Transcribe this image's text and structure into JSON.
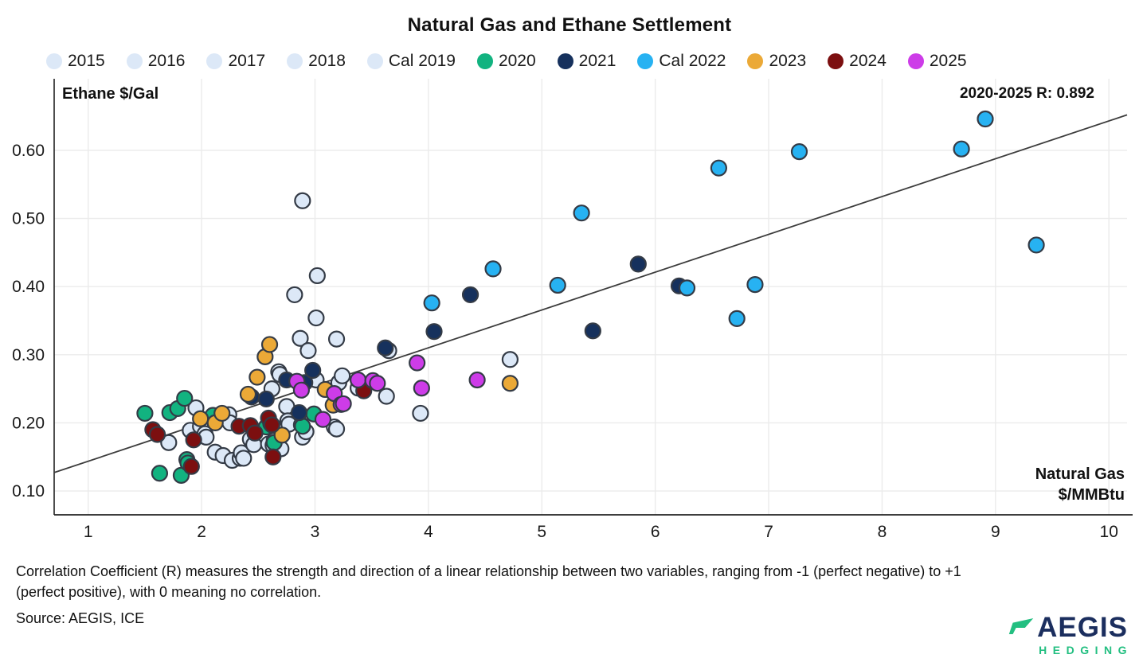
{
  "header": {
    "title": "Natural Gas and Ethane Settlement"
  },
  "chart_data": {
    "type": "scatter",
    "title": "Natural Gas and Ethane Settlement",
    "ylabel": "Ethane $/Gal",
    "xlabel": "Natural Gas $/MMBtu",
    "xlabel_lines": [
      "Natural Gas",
      "$/MMBtu"
    ],
    "annotation": "2020-2025 R: 0.892",
    "xlim": [
      0.7,
      10.16
    ],
    "ylim": [
      0.065,
      0.705
    ],
    "xticks": [
      1,
      2,
      3,
      4,
      5,
      6,
      7,
      8,
      9,
      10
    ],
    "yticks": [
      0.1,
      0.2,
      0.3,
      0.4,
      0.5,
      0.6
    ],
    "grid": true,
    "legend_position": "top",
    "grid_color": "#ebebeb",
    "axis_color": "#222222",
    "point_stroke": "#343b46",
    "trend_color": "#3c3c3c",
    "trend_line": {
      "x1": 0.7,
      "y1": 0.127,
      "x2": 10.16,
      "y2": 0.652
    },
    "series": [
      {
        "name": "2015",
        "color": "#dce8f7",
        "points": [
          [
            1.71,
            0.171
          ],
          [
            1.9,
            0.189
          ],
          [
            1.95,
            0.222
          ],
          [
            1.99,
            0.195
          ],
          [
            2.03,
            0.184
          ],
          [
            2.04,
            0.179
          ],
          [
            2.12,
            0.157
          ],
          [
            2.19,
            0.152
          ],
          [
            2.24,
            0.212
          ]
        ]
      },
      {
        "name": "2016",
        "color": "#dce8f7",
        "points": [
          [
            2.25,
            0.2
          ],
          [
            2.27,
            0.145
          ],
          [
            2.34,
            0.148
          ],
          [
            2.35,
            0.156
          ],
          [
            2.37,
            0.148
          ],
          [
            2.43,
            0.176
          ],
          [
            2.46,
            0.168
          ],
          [
            2.59,
            0.169
          ],
          [
            2.62,
            0.25
          ]
        ]
      },
      {
        "name": "2017",
        "color": "#dce8f7",
        "points": [
          [
            2.63,
            0.167
          ],
          [
            2.64,
            0.174
          ],
          [
            2.68,
            0.275
          ],
          [
            2.69,
            0.271
          ],
          [
            2.7,
            0.162
          ],
          [
            2.75,
            0.224
          ],
          [
            2.76,
            0.203
          ],
          [
            2.77,
            0.198
          ],
          [
            2.82,
            0.388
          ]
        ]
      },
      {
        "name": "2018",
        "color": "#dce8f7",
        "points": [
          [
            2.87,
            0.324
          ],
          [
            2.88,
            0.197
          ],
          [
            2.89,
            0.526
          ],
          [
            2.89,
            0.179
          ],
          [
            2.92,
            0.187
          ],
          [
            2.94,
            0.306
          ],
          [
            3.01,
            0.263
          ],
          [
            3.01,
            0.354
          ],
          [
            3.02,
            0.416
          ]
        ]
      },
      {
        "name": "Cal 2019",
        "color": "#dce8f7",
        "points": [
          [
            3.17,
            0.194
          ],
          [
            3.19,
            0.191
          ],
          [
            3.19,
            0.323
          ],
          [
            3.21,
            0.259
          ],
          [
            3.24,
            0.269
          ],
          [
            3.38,
            0.251
          ],
          [
            3.63,
            0.239
          ],
          [
            3.65,
            0.306
          ],
          [
            3.93,
            0.214
          ],
          [
            4.72,
            0.293
          ]
        ]
      },
      {
        "name": "2020",
        "color": "#12b380",
        "points": [
          [
            1.5,
            0.214
          ],
          [
            1.63,
            0.126
          ],
          [
            1.72,
            0.215
          ],
          [
            1.79,
            0.221
          ],
          [
            1.82,
            0.123
          ],
          [
            1.85,
            0.236
          ],
          [
            1.87,
            0.146
          ],
          [
            1.88,
            0.141
          ],
          [
            2.1,
            0.211
          ],
          [
            2.57,
            0.194
          ],
          [
            2.61,
            0.199
          ],
          [
            2.64,
            0.171
          ],
          [
            2.89,
            0.195
          ],
          [
            2.99,
            0.213
          ]
        ]
      },
      {
        "name": "2021",
        "color": "#16315d",
        "points": [
          [
            2.44,
            0.238
          ],
          [
            2.57,
            0.235
          ],
          [
            2.75,
            0.263
          ],
          [
            2.86,
            0.215
          ],
          [
            2.91,
            0.259
          ],
          [
            2.98,
            0.277
          ],
          [
            3.62,
            0.31
          ],
          [
            4.05,
            0.334
          ],
          [
            4.37,
            0.388
          ],
          [
            5.45,
            0.335
          ],
          [
            5.85,
            0.433
          ],
          [
            6.21,
            0.401
          ]
        ]
      },
      {
        "name": "Cal 2022",
        "color": "#27b2f2",
        "points": [
          [
            4.03,
            0.376
          ],
          [
            4.57,
            0.426
          ],
          [
            5.14,
            0.402
          ],
          [
            5.35,
            0.508
          ],
          [
            6.28,
            0.398
          ],
          [
            6.56,
            0.574
          ],
          [
            6.72,
            0.353
          ],
          [
            6.88,
            0.403
          ],
          [
            7.27,
            0.598
          ],
          [
            8.7,
            0.602
          ],
          [
            8.91,
            0.646
          ],
          [
            9.36,
            0.461
          ]
        ]
      },
      {
        "name": "2023",
        "color": "#eba937",
        "points": [
          [
            1.99,
            0.206
          ],
          [
            2.12,
            0.2
          ],
          [
            2.18,
            0.214
          ],
          [
            2.41,
            0.242
          ],
          [
            2.49,
            0.267
          ],
          [
            2.56,
            0.297
          ],
          [
            2.6,
            0.315
          ],
          [
            2.71,
            0.182
          ],
          [
            3.09,
            0.249
          ],
          [
            3.16,
            0.226
          ],
          [
            4.72,
            0.258
          ]
        ]
      },
      {
        "name": "2024",
        "color": "#7c0f10",
        "points": [
          [
            1.57,
            0.19
          ],
          [
            1.61,
            0.183
          ],
          [
            1.91,
            0.136
          ],
          [
            1.93,
            0.175
          ],
          [
            2.33,
            0.195
          ],
          [
            2.43,
            0.196
          ],
          [
            2.47,
            0.185
          ],
          [
            2.59,
            0.207
          ],
          [
            2.62,
            0.197
          ],
          [
            2.63,
            0.15
          ],
          [
            3.43,
            0.247
          ]
        ]
      },
      {
        "name": "2025",
        "color": "#cd3ce8",
        "points": [
          [
            2.84,
            0.261
          ],
          [
            2.88,
            0.248
          ],
          [
            3.07,
            0.205
          ],
          [
            3.17,
            0.243
          ],
          [
            3.23,
            0.227
          ],
          [
            3.25,
            0.228
          ],
          [
            3.38,
            0.263
          ],
          [
            3.51,
            0.262
          ],
          [
            3.55,
            0.258
          ],
          [
            3.9,
            0.288
          ],
          [
            3.94,
            0.251
          ],
          [
            4.43,
            0.263
          ]
        ]
      }
    ]
  },
  "footer": {
    "note": "Correlation Coefficient (R) measures the strength and direction of a linear relationship between two variables, ranging from -1 (perfect negative) to +1 (perfect positive), with 0 meaning no correlation.",
    "source": "Source: AEGIS, ICE"
  },
  "logo": {
    "name": "AEGIS",
    "subtitle": "HEDGING"
  }
}
